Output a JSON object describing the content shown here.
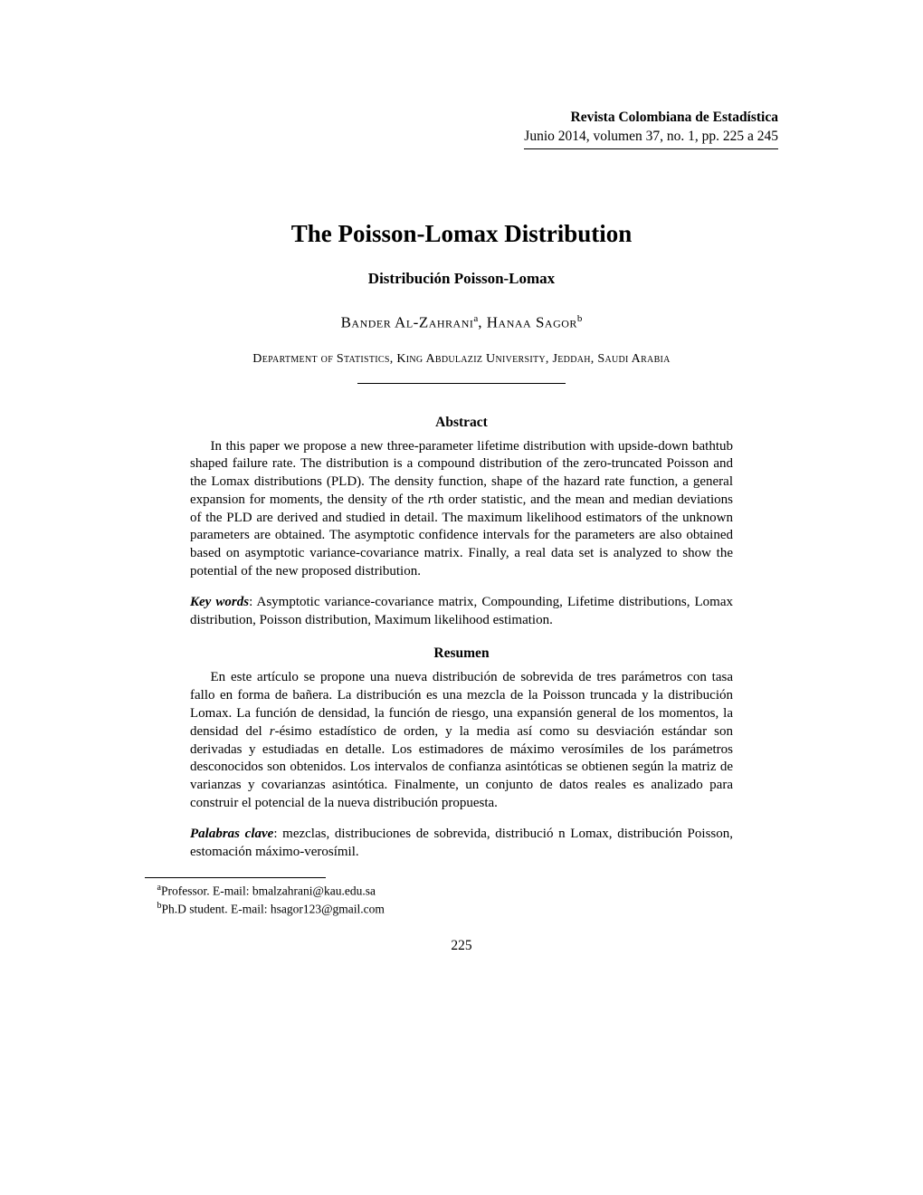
{
  "journal": {
    "name": "Revista Colombiana de Estadística",
    "issue": "Junio 2014, volumen 37, no. 1, pp. 225 a 245"
  },
  "title": "The Poisson-Lomax Distribution",
  "subtitle": "Distribución Poisson-Lomax",
  "authors_html": "Bander Al-Zahrani<sup>a</sup>, Hanaa Sagor<sup>b</sup>",
  "affiliation": "Department of Statistics, King Abdulaziz University, Jeddah, Saudi Arabia",
  "abstract": {
    "heading": "Abstract",
    "body_html": "In this paper we propose a new three-parameter lifetime distribution with upside-down bathtub shaped failure rate. The distribution is a compound distribution of the zero-truncated Poisson and the Lomax distributions (PLD). The density function, shape of the hazard rate function, a general expansion for moments, the density of the <span class=\"italic\">r</span>th order statistic, and the mean and median deviations of the PLD are derived and studied in detail. The maximum likelihood estimators of the unknown parameters are obtained. The asymptotic confidence intervals for the parameters are also obtained based on asymptotic variance-covariance matrix. Finally, a real data set is analyzed to show the potential of the new proposed distribution.",
    "keywords_label": "Key words",
    "keywords_text": ": Asymptotic variance-covariance matrix, Compounding, Lifetime distributions, Lomax distribution, Poisson distribution, Maximum likelihood estimation."
  },
  "resumen": {
    "heading": "Resumen",
    "body_html": "En este artículo se propone una nueva distribución de sobrevida de tres parámetros con tasa fallo en forma de bañera. La distribución es una mezcla de la Poisson truncada y la distribución Lomax. La función de densidad, la función de riesgo, una expansión general de los momentos, la densidad del <span class=\"italic\">r</span>-ésimo estadístico de orden, y la media así como su desviación estándar son derivadas y estudiadas en detalle. Los estimadores de máximo verosímiles de los parámetros desconocidos son obtenidos. Los intervalos de confianza asintóticas se obtienen según la matriz de varianzas y covarianzas asintótica. Finalmente, un conjunto de datos reales es analizado para construir el potencial de la nueva distribución propuesta.",
    "keywords_label": "Palabras clave",
    "keywords_text": ": mezclas, distribuciones de sobrevida, distribució n Lomax, distribución Poisson, estomación máximo-verosímil."
  },
  "footnotes": {
    "a_html": "<sup>a</sup>Professor. E-mail: bmalzahrani@kau.edu.sa",
    "b_html": "<sup>b</sup>Ph.D student. E-mail: hsagor123@gmail.com"
  },
  "page_number": "225"
}
